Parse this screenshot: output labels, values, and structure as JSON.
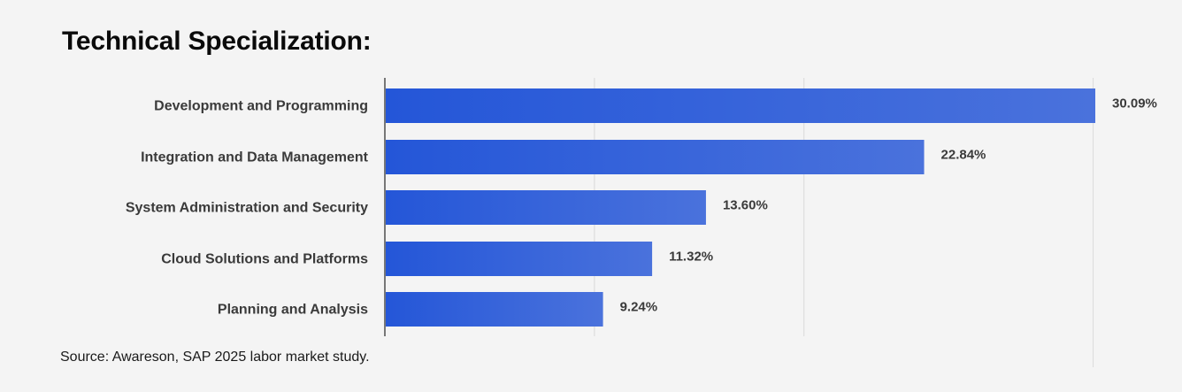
{
  "title": "Technical Specialization:",
  "source": "Source: Awareson, SAP 2025 labor market study.",
  "chart_data": {
    "type": "bar",
    "orientation": "horizontal",
    "title": "Technical Specialization:",
    "categories": [
      "Development and Programming",
      "Integration and Data Management",
      "System Administration and Security",
      "Cloud Solutions and Platforms",
      "Planning and Analysis"
    ],
    "values": [
      30.09,
      22.84,
      13.6,
      11.32,
      9.24
    ],
    "value_labels": [
      "30.09%",
      "22.84%",
      "13.60%",
      "11.32%",
      "9.24%"
    ],
    "xlim": [
      0,
      30.09
    ],
    "gridlines": [
      10,
      20,
      30
    ],
    "grid": true,
    "xlabel": "",
    "ylabel": "",
    "colors": {
      "bar_start": "#2456d8",
      "bar_end": "#4a72dc",
      "grid": "#d9d9d9",
      "axis": "#777777",
      "background": "#f4f4f4"
    }
  }
}
